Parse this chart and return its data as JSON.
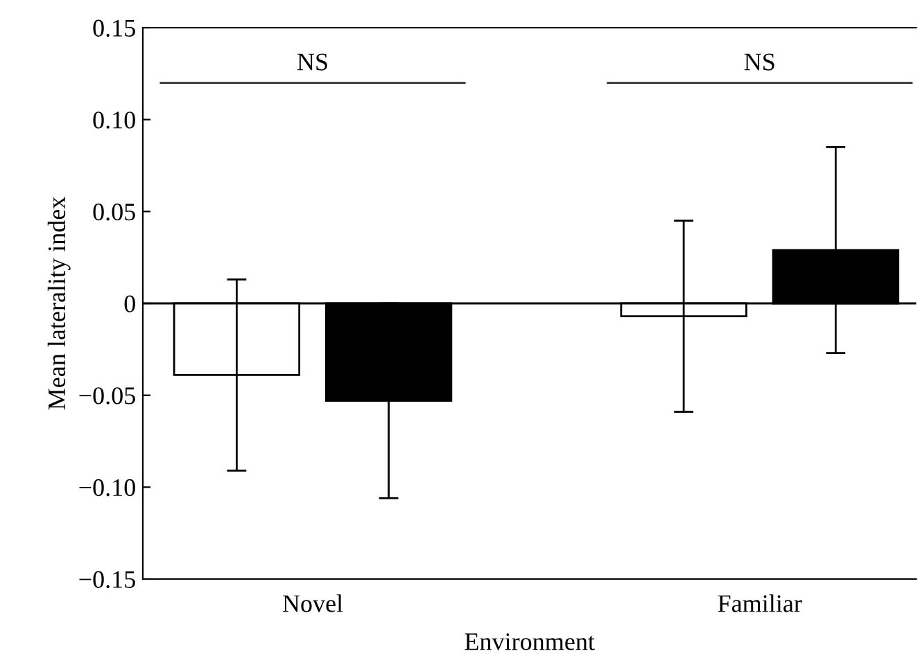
{
  "chart_data": {
    "type": "bar",
    "xlabel": "Environment",
    "ylabel": "Mean laterality index",
    "categories": [
      "Novel",
      "Familiar"
    ],
    "series": [
      {
        "color": "#ffffff",
        "values": [
          -0.039,
          -0.007
        ],
        "errors": [
          0.052,
          0.052
        ]
      },
      {
        "color": "#000000",
        "values": [
          -0.053,
          0.029
        ],
        "errors": [
          0.053,
          0.056
        ]
      }
    ],
    "ylim": [
      -0.15,
      0.15
    ],
    "yticks": [
      {
        "value": -0.15,
        "label": "−0.15"
      },
      {
        "value": -0.1,
        "label": "−0.10"
      },
      {
        "value": -0.05,
        "label": "−0.05"
      },
      0,
      0.05,
      {
        "value": 0.1,
        "label": "0.10"
      },
      0.15
    ],
    "ref_lines": [
      {
        "axis": "y",
        "value": 0
      }
    ],
    "annotations": [
      "NS",
      "NS"
    ],
    "grid": false,
    "legend": false
  }
}
